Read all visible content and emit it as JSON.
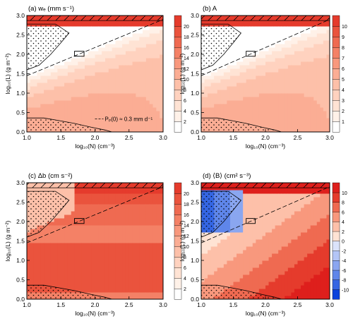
{
  "colors": {
    "reds": [
      "#ffffff",
      "#fff1e8",
      "#ffe3d4",
      "#ffd2bf",
      "#fdc0a9",
      "#fbad94",
      "#f8987d",
      "#f48166",
      "#ef6a51",
      "#ea533d",
      "#e53b2c",
      "#de1f1c"
    ],
    "blues": [
      "#dbe3fb",
      "#b3c5f6",
      "#8aa6f0",
      "#5f86ea",
      "#3566e3",
      "#0a43dc"
    ],
    "hatch": "#000000"
  },
  "chart_data": [
    {
      "type": "heatmap",
      "panel": "a",
      "title": "(a) wₑ (mm s⁻¹)",
      "xlabel": "log₁₀(N) (cm⁻³)",
      "ylabel": "log₁₀(L) (g m⁻²)",
      "xlim": [
        1.0,
        3.0
      ],
      "ylim": [
        0.0,
        3.0
      ],
      "xticks": [
        "1.0",
        "1.5",
        "2.0",
        "2.5",
        "3.0"
      ],
      "yticks": [
        "0.0",
        "0.5",
        "1.0",
        "1.5",
        "2.0",
        "2.5",
        "3.0"
      ],
      "colorbar": {
        "ticks": [
          "2",
          "4",
          "6",
          "8",
          "10",
          "12",
          "14",
          "16",
          "18",
          "20"
        ],
        "levels": [
          2,
          4,
          6,
          8,
          10,
          12,
          14,
          16,
          18,
          20
        ],
        "diverging": false
      },
      "annotation": "Pₚ(0) ≈ 0.3 mm d⁻¹",
      "field": {
        "kind": "w",
        "scale": 1.0
      }
    },
    {
      "type": "heatmap",
      "panel": "b",
      "title": "(b) A",
      "xlabel": "log₁₀(N) (cm⁻³)",
      "ylabel": "log₁₀(L) (g m⁻²)",
      "xlim": [
        1.0,
        3.0
      ],
      "ylim": [
        0.0,
        3.0
      ],
      "xticks": [
        "1.0",
        "1.5",
        "2.0",
        "2.5",
        "3.0"
      ],
      "yticks": [
        "0.0",
        "0.5",
        "1.0",
        "1.5",
        "2.0",
        "2.5",
        "3.0"
      ],
      "colorbar": {
        "ticks": [
          "1",
          "2",
          "3",
          "4",
          "5",
          "6",
          "7",
          "8",
          "9",
          "10"
        ],
        "levels": [
          1,
          2,
          3,
          4,
          5,
          6,
          7,
          8,
          9,
          10
        ],
        "diverging": false
      },
      "annotation": "",
      "field": {
        "kind": "w",
        "scale": 0.5
      }
    },
    {
      "type": "heatmap",
      "panel": "c",
      "title": "(c) Δb (cm s⁻²)",
      "xlabel": "log₁₀(N) (cm⁻³)",
      "ylabel": "log₁₀(L) (g m⁻²)",
      "xlim": [
        1.0,
        3.0
      ],
      "ylim": [
        0.0,
        3.0
      ],
      "xticks": [
        "1.0",
        "1.5",
        "2.0",
        "2.5",
        "3.0"
      ],
      "yticks": [
        "0.0",
        "0.5",
        "1.0",
        "1.5",
        "2.0",
        "2.5",
        "3.0"
      ],
      "colorbar": {
        "ticks": [
          "2",
          "4",
          "6",
          "8",
          "10",
          "12",
          "14",
          "16",
          "18",
          "20"
        ],
        "levels": [
          2,
          4,
          6,
          8,
          10,
          12,
          14,
          16,
          18,
          20
        ],
        "diverging": false
      },
      "annotation": "",
      "field": {
        "kind": "db",
        "scale": 1.0
      }
    },
    {
      "type": "heatmap",
      "panel": "d",
      "title": "(d) ⟨B⟩ (cm² s⁻³)",
      "xlabel": "log₁₀(N) (cm⁻³)",
      "ylabel": "log₁₀(L) (g m⁻²)",
      "xlim": [
        1.0,
        3.0
      ],
      "ylim": [
        0.0,
        3.0
      ],
      "xticks": [
        "1.0",
        "1.5",
        "2.0",
        "2.5",
        "3.0"
      ],
      "yticks": [
        "0.0",
        "0.5",
        "1.0",
        "1.5",
        "2.0",
        "2.5",
        "3.0"
      ],
      "colorbar": {
        "ticks": [
          "10",
          "8",
          "6",
          "4",
          "2",
          "0",
          "-2",
          "-4",
          "-6",
          "-8",
          "-10"
        ],
        "levels": [
          -10,
          -8,
          -6,
          -4,
          -2,
          0,
          2,
          4,
          6,
          8,
          10
        ],
        "diverging": true
      },
      "annotation": "",
      "field": {
        "kind": "B",
        "scale": 1.0
      }
    }
  ]
}
